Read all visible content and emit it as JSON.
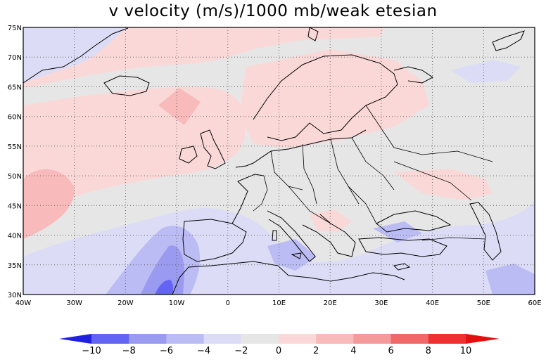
{
  "title": "v velocity (m/s)/1000 mb/weak etesian",
  "map": {
    "lon_range": [
      -40,
      60
    ],
    "lat_range": [
      30,
      75
    ],
    "lat_labels": [
      "30N",
      "35N",
      "40N",
      "45N",
      "50N",
      "55N",
      "60N",
      "65N",
      "70N",
      "75N"
    ],
    "lon_labels": [
      "40W",
      "30W",
      "20W",
      "10W",
      "0",
      "10E",
      "20E",
      "30E",
      "40E",
      "50E",
      "60E"
    ],
    "lat_values": [
      30,
      35,
      40,
      45,
      50,
      55,
      60,
      65,
      70,
      75
    ],
    "lon_values": [
      -40,
      -30,
      -20,
      -10,
      0,
      10,
      20,
      30,
      40,
      50,
      60
    ]
  },
  "colorbar": {
    "labels": [
      "−10",
      "−8",
      "−6",
      "−4",
      "−2",
      "0",
      "2",
      "4",
      "6",
      "8",
      "10"
    ],
    "colors": [
      "#2020e0",
      "#6464f4",
      "#9a9af0",
      "#bcbcf4",
      "#dcdcf6",
      "#e6e6e6",
      "#fad8d8",
      "#f8baba",
      "#f49a9a",
      "#f06868",
      "#ee3030",
      "#e41010"
    ]
  },
  "field_colors": {
    "neg2": "#dcdcf6",
    "neg4": "#bcbcf4",
    "neg6": "#9a9af0",
    "neg8": "#6464f4",
    "zero": "#e6e6e6",
    "pos2": "#fad8d8",
    "pos4": "#f8baba",
    "coast": "#000000"
  }
}
